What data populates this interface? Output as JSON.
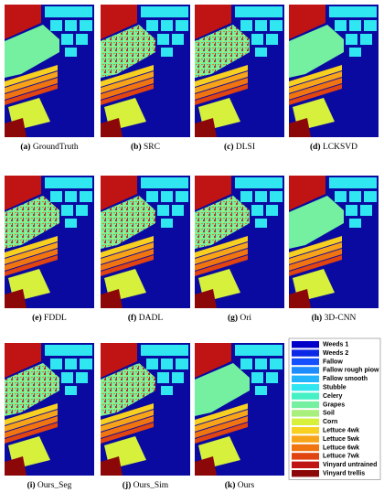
{
  "panels": [
    {
      "label": "(a)",
      "name": "GroundTruth"
    },
    {
      "label": "(b)",
      "name": "SRC"
    },
    {
      "label": "(c)",
      "name": "DLSI"
    },
    {
      "label": "(d)",
      "name": "LCKSVD"
    },
    {
      "label": "(e)",
      "name": "FDDL"
    },
    {
      "label": "(f)",
      "name": "DADL"
    },
    {
      "label": "(g)",
      "name": "Ori"
    },
    {
      "label": "(h)",
      "name": "3D-CNN"
    },
    {
      "label": "(i)",
      "name": "Ours_Seg"
    },
    {
      "label": "(j)",
      "name": "Ours_Sim"
    },
    {
      "label": "(k)",
      "name": "Ours"
    }
  ],
  "legend": [
    {
      "name": "Weeds 1",
      "color": "#0000c8"
    },
    {
      "name": "Weeds 2",
      "color": "#0a28e6"
    },
    {
      "name": "Fallow",
      "color": "#1450ff"
    },
    {
      "name": "Fallow rough piow",
      "color": "#1c8cff"
    },
    {
      "name": "Fallow smooth",
      "color": "#22b4ff"
    },
    {
      "name": "Stubble",
      "color": "#30e6f0"
    },
    {
      "name": "Celery",
      "color": "#44f0c4"
    },
    {
      "name": "Grapes",
      "color": "#74f0a0"
    },
    {
      "name": "Soil",
      "color": "#a8f07c"
    },
    {
      "name": "Corn",
      "color": "#d6f03c"
    },
    {
      "name": "Lettuce  4wk",
      "color": "#f8d020"
    },
    {
      "name": "Lettuce  5wk",
      "color": "#f8a418"
    },
    {
      "name": "Lettuce  6wk",
      "color": "#f07410"
    },
    {
      "name": "Lettuce  7wk",
      "color": "#e04410"
    },
    {
      "name": "Vinyard  untrained",
      "color": "#c01414"
    },
    {
      "name": "Vinyard  trellis",
      "color": "#8c0808"
    }
  ]
}
